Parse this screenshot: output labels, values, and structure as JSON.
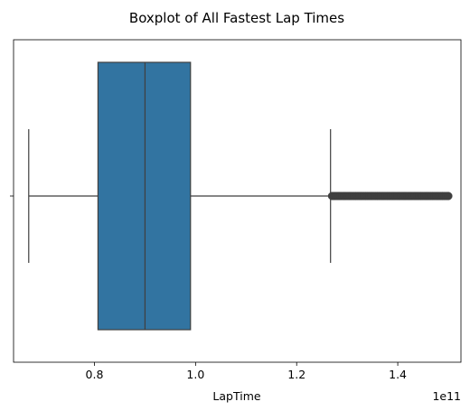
{
  "chart_data": {
    "type": "boxplot",
    "orientation": "horizontal",
    "title": "Boxplot of All Fastest Lap Times",
    "xlabel": "LapTime",
    "ylabel": "",
    "x_scale_label": "1e11",
    "xlim": [
      0.64,
      1.525
    ],
    "x_ticks": [
      0.8,
      1.0,
      1.2,
      1.4
    ],
    "x_tick_labels": [
      "0.8",
      "1.0",
      "1.2",
      "1.4"
    ],
    "y_ticks": [
      ""
    ],
    "grid": false,
    "box": {
      "whisker_low": 0.67,
      "q1": 0.807,
      "median": 0.9,
      "q3": 0.99,
      "whisker_high": 1.267
    },
    "outlier_range": [
      1.27,
      1.5
    ],
    "colors": {
      "box_fill": "#3274a1",
      "lines": "#3f3f3f",
      "outlier": "#3f3f3f"
    }
  }
}
